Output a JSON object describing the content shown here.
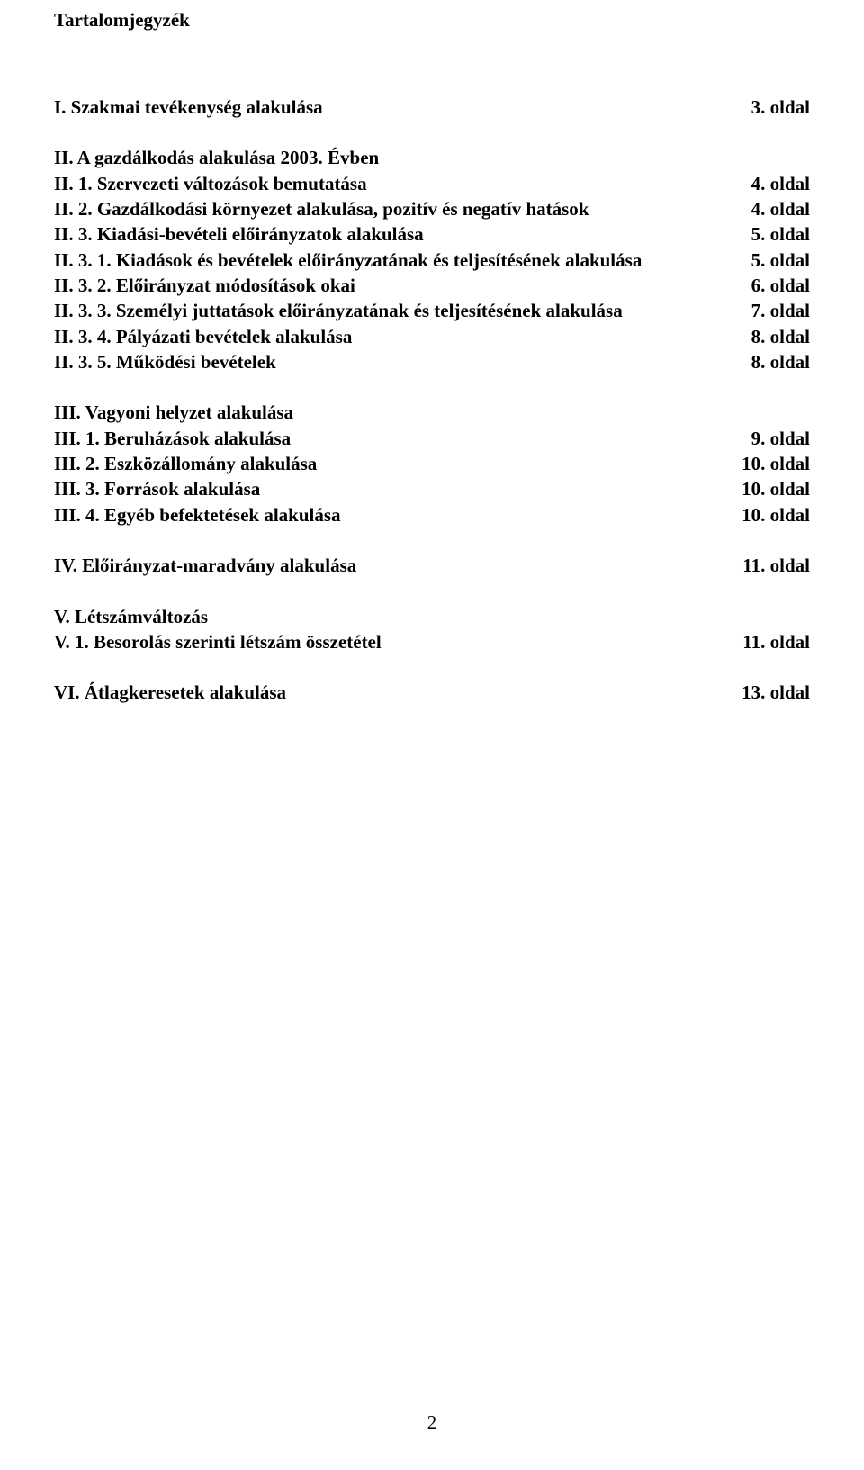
{
  "title": "Tartalomjegyzék",
  "pageNumber": "2",
  "sections": [
    {
      "rows": [
        {
          "entry": "I. Szakmai tevékenység alakulása",
          "page": "3. oldal"
        }
      ]
    },
    {
      "rows": [
        {
          "entry": "II. A gazdálkodás alakulása 2003. Évben",
          "page": ""
        },
        {
          "entry": "II. 1. Szervezeti változások bemutatása",
          "page": "4. oldal"
        },
        {
          "entry": "II. 2. Gazdálkodási környezet alakulása, pozitív és negatív hatások",
          "page": "4. oldal"
        },
        {
          "entry": "II. 3. Kiadási-bevételi előirányzatok alakulása",
          "page": "5. oldal"
        },
        {
          "entry": "II. 3. 1. Kiadások és bevételek előirányzatának és teljesítésének alakulása",
          "page": "5. oldal"
        },
        {
          "entry": "II. 3. 2. Előirányzat módosítások okai",
          "page": "6. oldal"
        },
        {
          "entry": "II. 3. 3. Személyi juttatások előirányzatának és teljesítésének alakulása",
          "page": "7. oldal"
        },
        {
          "entry": "II. 3. 4. Pályázati bevételek alakulása",
          "page": "8. oldal"
        },
        {
          "entry": "II. 3. 5. Működési bevételek",
          "page": "8. oldal"
        }
      ]
    },
    {
      "rows": [
        {
          "entry": "III. Vagyoni helyzet alakulása",
          "page": ""
        },
        {
          "entry": "III. 1. Beruházások alakulása",
          "page": "9. oldal"
        },
        {
          "entry": "III. 2. Eszközállomány alakulása",
          "page": "10. oldal"
        },
        {
          "entry": "III. 3. Források alakulása",
          "page": "10. oldal"
        },
        {
          "entry": "III. 4. Egyéb befektetések alakulása",
          "page": "10. oldal"
        }
      ]
    },
    {
      "rows": [
        {
          "entry": "IV. Előirányzat-maradvány alakulása",
          "page": "11. oldal"
        }
      ]
    },
    {
      "rows": [
        {
          "entry": "V. Létszámváltozás",
          "page": ""
        },
        {
          "entry": "V. 1. Besorolás szerinti létszám összetétel",
          "page": "11. oldal"
        }
      ]
    },
    {
      "rows": [
        {
          "entry": "VI. Átlagkeresetek alakulása",
          "page": "13. oldal"
        }
      ]
    }
  ]
}
